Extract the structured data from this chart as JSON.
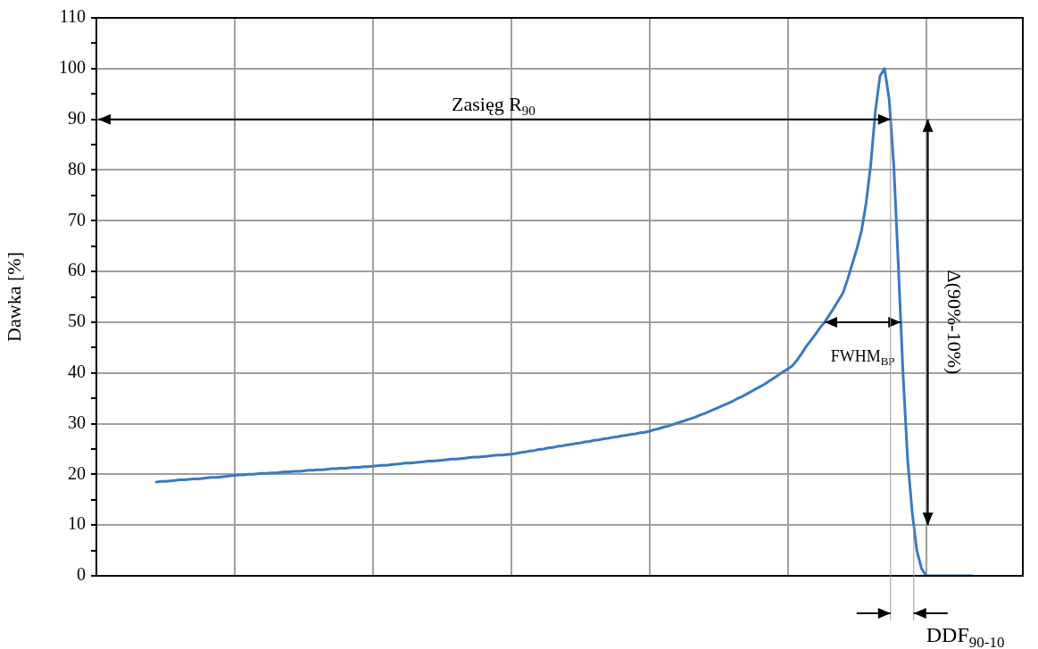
{
  "chart_data": {
    "type": "line",
    "ylabel": "Dawka [%]",
    "categories": [
      null,
      null,
      null,
      null,
      null,
      null,
      null,
      null,
      null,
      null,
      null,
      null,
      null,
      null,
      null,
      null,
      null,
      null,
      null,
      null,
      null,
      null,
      null,
      null,
      null,
      null,
      null,
      null,
      null,
      null,
      null,
      null,
      null,
      null,
      null,
      null,
      null,
      null,
      null,
      null,
      null,
      null,
      null,
      null,
      null,
      null,
      null,
      null,
      null,
      null,
      null,
      null,
      null,
      null,
      null,
      null,
      null,
      null,
      null,
      null,
      null,
      null,
      null,
      null,
      null,
      null,
      null,
      null,
      null,
      null,
      null,
      null,
      null,
      null,
      null,
      null,
      null,
      null,
      null,
      null,
      null,
      null,
      null,
      null,
      null,
      null,
      null,
      null,
      null,
      null,
      null,
      null,
      null,
      null,
      null,
      null,
      null,
      null,
      null,
      null,
      null,
      null,
      null,
      null,
      null,
      null,
      null,
      null,
      null,
      null,
      null,
      null,
      null,
      null,
      null,
      null,
      null,
      null,
      null,
      null,
      null,
      null,
      null,
      null,
      null,
      null,
      null,
      null,
      null,
      null,
      null,
      null,
      null,
      null,
      null,
      null,
      null,
      null,
      null,
      null,
      null,
      null,
      null,
      null,
      null,
      null,
      null,
      null,
      null,
      null,
      null,
      null,
      null,
      null,
      null,
      null,
      null,
      null,
      null,
      null,
      null,
      null,
      null,
      null,
      null,
      null,
      null,
      null,
      null,
      null,
      null,
      null,
      null,
      null,
      null,
      null,
      null,
      null,
      null,
      null,
      null,
      null,
      null,
      null,
      null,
      null,
      null,
      null,
      null,
      null,
      null,
      null,
      null,
      null,
      null,
      null,
      null,
      null,
      null,
      null,
      null,
      null
    ],
    "series": [
      {
        "color": "#3a7abf",
        "values": [
          null,
          null,
          null,
          null,
          null,
          null,
          null,
          null,
          null,
          null,
          null,
          null,
          null,
          18.5,
          18.6,
          18.6,
          18.7,
          18.8,
          18.9,
          18.9,
          19.0,
          19.1,
          19.1,
          19.2,
          19.3,
          19.4,
          19.4,
          19.5,
          19.6,
          19.7,
          19.8,
          19.9,
          19.9,
          20.0,
          20.0,
          20.1,
          20.2,
          20.2,
          20.3,
          20.3,
          20.4,
          20.5,
          20.5,
          20.6,
          20.6,
          20.7,
          20.8,
          20.8,
          20.9,
          20.9,
          21.0,
          21.1,
          21.1,
          21.2,
          21.2,
          21.3,
          21.4,
          21.4,
          21.5,
          21.5,
          21.6,
          21.7,
          21.8,
          21.8,
          21.9,
          22.0,
          22.1,
          22.2,
          22.2,
          22.3,
          22.4,
          22.5,
          22.6,
          22.6,
          22.7,
          22.8,
          22.9,
          23.0,
          23.0,
          23.1,
          23.2,
          23.3,
          23.4,
          23.4,
          23.5,
          23.6,
          23.7,
          23.8,
          23.8,
          23.9,
          24.0,
          24.1,
          24.3,
          24.4,
          24.6,
          24.7,
          24.9,
          25.0,
          25.2,
          25.3,
          25.5,
          25.6,
          25.8,
          25.9,
          26.1,
          26.2,
          26.4,
          26.5,
          26.7,
          26.8,
          27.0,
          27.1,
          27.3,
          27.4,
          27.6,
          27.7,
          27.9,
          28.0,
          28.2,
          28.3,
          28.5,
          28.8,
          29.0,
          29.3,
          29.5,
          29.8,
          30.1,
          30.4,
          30.7,
          31.0,
          31.3,
          31.7,
          32.0,
          32.4,
          32.8,
          33.2,
          33.6,
          34.0,
          34.4,
          34.9,
          35.3,
          35.8,
          36.3,
          36.8,
          37.3,
          37.8,
          38.4,
          39.0,
          39.6,
          40.2,
          40.8,
          41.4,
          42.5,
          43.8,
          45.2,
          46.4,
          47.6,
          48.9,
          50.0,
          51.4,
          52.8,
          54.3,
          55.8,
          58.5,
          61.5,
          64.5,
          68,
          73.5,
          81,
          91.5,
          98.5,
          100,
          94,
          81,
          61,
          40,
          23,
          12.5,
          5,
          1.5,
          0,
          0,
          0,
          0,
          0,
          0,
          0,
          0,
          0,
          0,
          0,
          null,
          null,
          null,
          null,
          null,
          null,
          null,
          null,
          null,
          null,
          null
        ]
      }
    ],
    "ylim": [
      0,
      110
    ],
    "yticks": [
      0,
      {
        "value": 5,
        "label": null
      },
      10,
      {
        "value": 15,
        "label": null
      },
      20,
      {
        "value": 25,
        "label": null
      },
      30,
      {
        "value": 35,
        "label": null
      },
      40,
      {
        "value": 45,
        "label": null
      },
      50,
      {
        "value": 55,
        "label": null
      },
      60,
      {
        "value": 65,
        "label": null
      },
      70,
      {
        "value": 75,
        "label": null
      },
      80,
      {
        "value": 85,
        "label": null
      },
      90,
      {
        "value": 95,
        "label": null
      },
      100,
      {
        "value": 105,
        "label": null
      },
      110
    ],
    "grid": true,
    "legend": false,
    "marker": "none",
    "line_style": "solid",
    "annotations": [
      "Zasięg R$_{90}$",
      "FWHM$_{BP}$",
      "Δ(90%-10%)",
      "DDF$_{90-10}$"
    ]
  }
}
